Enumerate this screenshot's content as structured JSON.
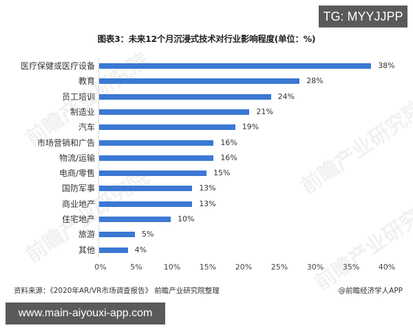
{
  "overlay": {
    "tg_label": "TG: MYYJJPP",
    "url_label": "www.main-aiyouxi-app.com"
  },
  "watermark": {
    "text": "前瞻产业研究院"
  },
  "footer": {
    "source": "资料来源：《2020年AR/VR市场调查报告》 前瞻产业研究院整理",
    "credit": "@前瞻经济学人APP"
  },
  "chart_data": {
    "type": "bar",
    "orientation": "horizontal",
    "title": "图表3：未来12个月沉浸式技术对行业影响程度(单位：%)",
    "xlabel": "",
    "ylabel": "",
    "xlim": [
      0,
      40
    ],
    "grid": false,
    "legend": null,
    "bar_color": "#3b78d3",
    "categories": [
      "医疗保健或医疗设备",
      "教育",
      "员工培训",
      "制造业",
      "汽车",
      "市场营销和广告",
      "物流/运输",
      "电商/零售",
      "国防军事",
      "商业地产",
      "住宅地产",
      "旅游",
      "其他"
    ],
    "values": [
      38,
      28,
      24,
      21,
      19,
      16,
      16,
      15,
      13,
      13,
      10,
      5,
      4
    ],
    "value_labels": [
      "38%",
      "28%",
      "24%",
      "21%",
      "19%",
      "16%",
      "16%",
      "15%",
      "13%",
      "13%",
      "10%",
      "5%",
      "4%"
    ],
    "x_ticks": [
      "0%",
      "5%",
      "10%",
      "15%",
      "20%",
      "25%",
      "30%",
      "35%",
      "40%"
    ]
  }
}
